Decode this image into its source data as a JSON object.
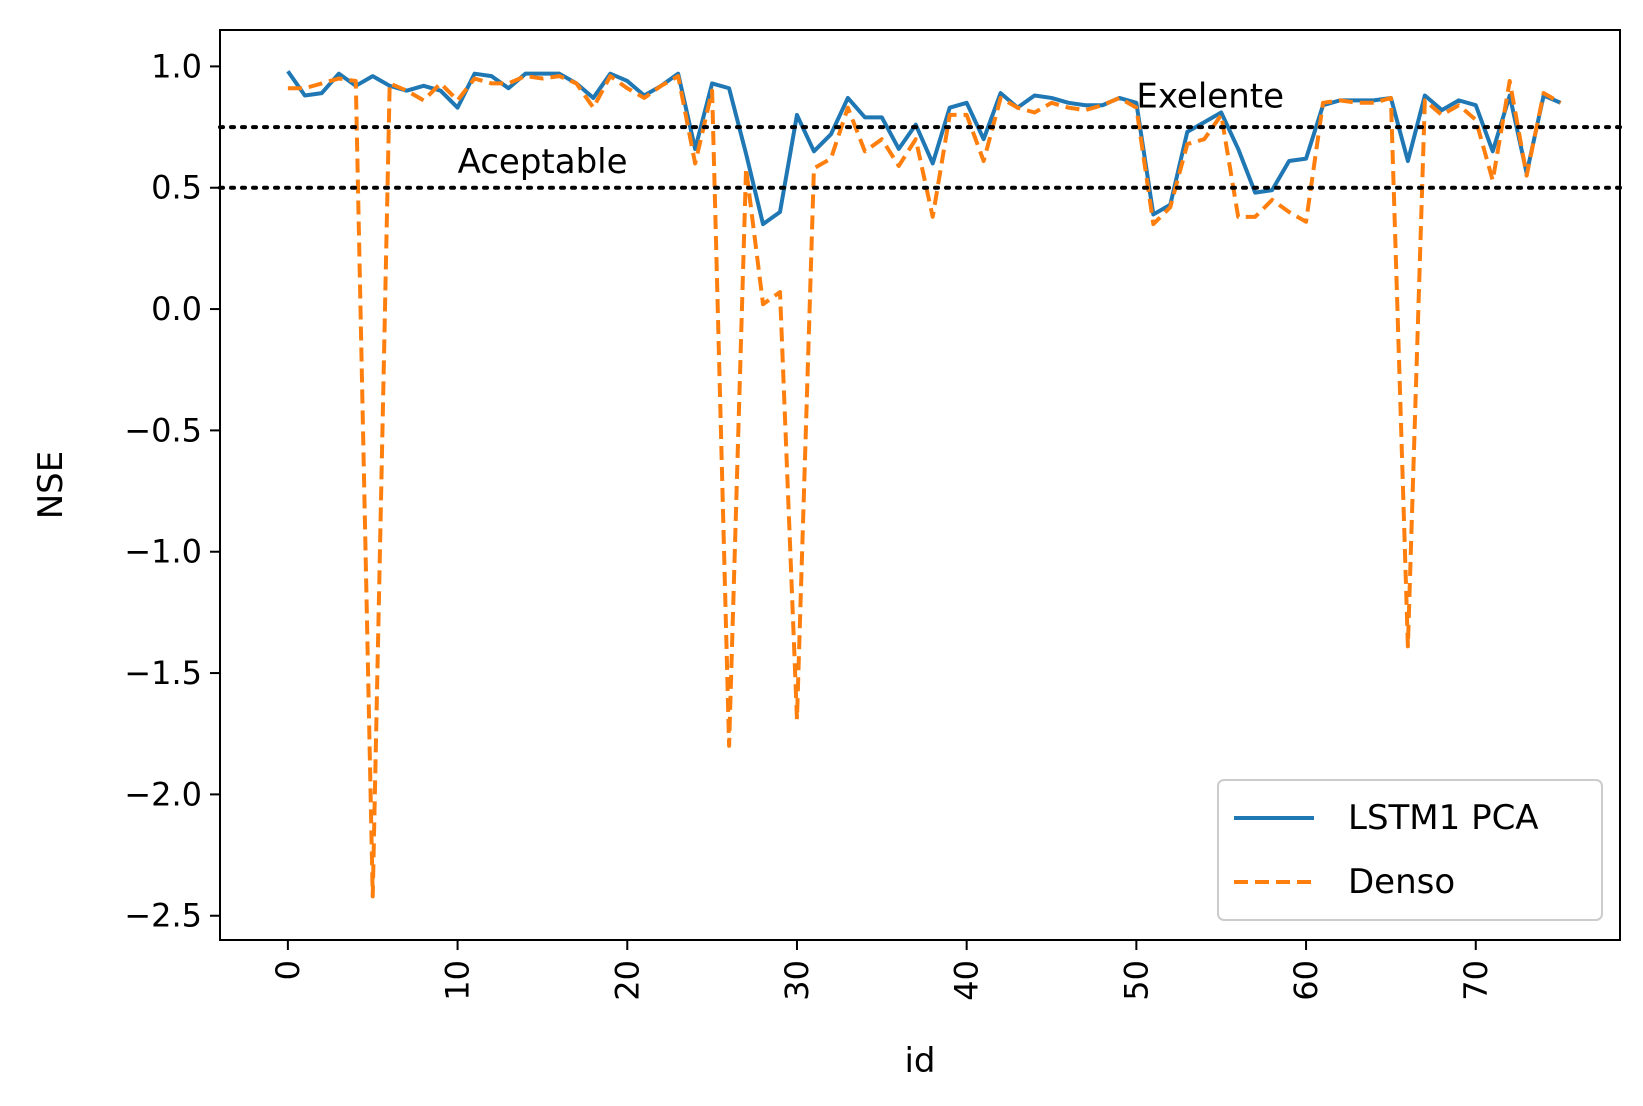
{
  "chart_data": {
    "type": "line",
    "xlabel": "id",
    "ylabel": "NSE",
    "xlim": [
      -4,
      78.5
    ],
    "ylim": [
      -2.6,
      1.15
    ],
    "xticks": [
      0,
      10,
      20,
      30,
      40,
      50,
      60,
      70
    ],
    "yticks": [
      1.0,
      0.5,
      0.0,
      -0.5,
      -1.0,
      -1.5,
      -2.0,
      -2.5
    ],
    "xtick_rotation": 90,
    "grid": false,
    "legend_position": "lower-right",
    "x": [
      0,
      1,
      2,
      3,
      4,
      5,
      6,
      7,
      8,
      9,
      10,
      11,
      12,
      13,
      14,
      15,
      16,
      17,
      18,
      19,
      20,
      21,
      22,
      23,
      24,
      25,
      26,
      27,
      28,
      29,
      30,
      31,
      32,
      33,
      34,
      35,
      36,
      37,
      38,
      39,
      40,
      41,
      42,
      43,
      44,
      45,
      46,
      47,
      48,
      49,
      50,
      51,
      52,
      53,
      54,
      55,
      56,
      57,
      58,
      59,
      60,
      61,
      62,
      63,
      64,
      65,
      66,
      67,
      68,
      69,
      70,
      71,
      72,
      73,
      74,
      75
    ],
    "series": [
      {
        "name": "LSTM1 PCA",
        "color": "#1f77b4",
        "dash": "solid",
        "values": [
          0.98,
          0.88,
          0.89,
          0.97,
          0.92,
          0.96,
          0.92,
          0.9,
          0.92,
          0.9,
          0.83,
          0.97,
          0.96,
          0.91,
          0.97,
          0.97,
          0.97,
          0.93,
          0.87,
          0.97,
          0.94,
          0.88,
          0.92,
          0.97,
          0.66,
          0.93,
          0.91,
          0.64,
          0.35,
          0.4,
          0.8,
          0.65,
          0.72,
          0.87,
          0.79,
          0.79,
          0.66,
          0.76,
          0.6,
          0.83,
          0.85,
          0.7,
          0.89,
          0.83,
          0.88,
          0.87,
          0.85,
          0.84,
          0.84,
          0.87,
          0.85,
          0.39,
          0.43,
          0.73,
          0.77,
          0.81,
          0.66,
          0.48,
          0.49,
          0.61,
          0.62,
          0.84,
          0.86,
          0.86,
          0.86,
          0.87,
          0.61,
          0.88,
          0.82,
          0.86,
          0.84,
          0.65,
          0.88,
          0.56,
          0.88,
          0.85
        ]
      },
      {
        "name": "Denso",
        "color": "#ff7f0e",
        "dash": "dashed",
        "values": [
          0.91,
          0.91,
          0.93,
          0.95,
          0.94,
          -2.42,
          0.93,
          0.9,
          0.86,
          0.93,
          0.86,
          0.95,
          0.93,
          0.93,
          0.96,
          0.95,
          0.96,
          0.93,
          0.83,
          0.96,
          0.91,
          0.87,
          0.92,
          0.96,
          0.6,
          0.9,
          -1.8,
          0.58,
          0.02,
          0.07,
          -1.69,
          0.58,
          0.62,
          0.83,
          0.65,
          0.7,
          0.59,
          0.7,
          0.38,
          0.8,
          0.8,
          0.61,
          0.87,
          0.83,
          0.81,
          0.85,
          0.83,
          0.82,
          0.84,
          0.87,
          0.83,
          0.35,
          0.42,
          0.68,
          0.7,
          0.8,
          0.38,
          0.38,
          0.45,
          0.4,
          0.36,
          0.85,
          0.86,
          0.85,
          0.85,
          0.87,
          -1.39,
          0.86,
          0.8,
          0.84,
          0.78,
          0.53,
          0.94,
          0.55,
          0.89,
          0.85
        ]
      }
    ],
    "hlines": [
      {
        "y": 0.75,
        "style": "dotted",
        "color": "#000000"
      },
      {
        "y": 0.5,
        "style": "dotted",
        "color": "#000000"
      }
    ],
    "annotations": [
      {
        "text": "Exelente",
        "x": 50.0,
        "y": 0.83
      },
      {
        "text": "Aceptable",
        "x": 10.0,
        "y": 0.56
      }
    ]
  }
}
